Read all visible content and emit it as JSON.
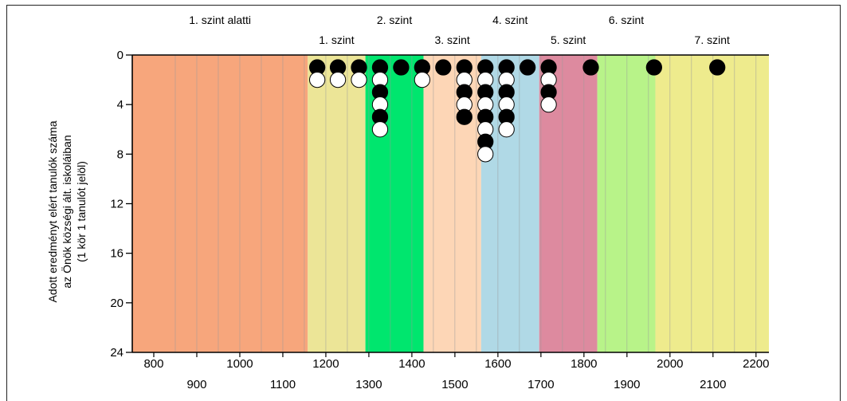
{
  "chart_data": {
    "type": "scatter",
    "title": "",
    "ylabel_lines": [
      "Adott eredményt elért tanulók száma",
      "az Önök községi ált. iskoláiban",
      "(1 kör 1 tanulót jelöl)"
    ],
    "xlabel": "",
    "xlim": [
      750,
      2230
    ],
    "ylim": [
      24,
      0
    ],
    "y_ticks": [
      0,
      4,
      8,
      12,
      16,
      20,
      24
    ],
    "x_ticks_upper": [
      800,
      1000,
      1200,
      1400,
      1600,
      1800,
      2000,
      2200
    ],
    "x_ticks_lower": [
      900,
      1100,
      1300,
      1500,
      1700,
      1900,
      2100
    ],
    "levels": [
      {
        "label": "1. szint alatti",
        "from": 750,
        "to": 1158,
        "color": "#f7a67c",
        "label_row": "top"
      },
      {
        "label": "1. szint",
        "from": 1158,
        "to": 1292,
        "color": "#ece597",
        "label_row": "bottom"
      },
      {
        "label": "2. szint",
        "from": 1292,
        "to": 1427,
        "color": "#00e66e",
        "label_row": "top"
      },
      {
        "label": "3. szint",
        "from": 1427,
        "to": 1561,
        "color": "#fdd6b6",
        "label_row": "bottom"
      },
      {
        "label": "4. szint",
        "from": 1561,
        "to": 1696,
        "color": "#b0d9e6",
        "label_row": "top"
      },
      {
        "label": "5. szint",
        "from": 1696,
        "to": 1831,
        "color": "#dd8a9f",
        "label_row": "bottom"
      },
      {
        "label": "6. szint",
        "from": 1831,
        "to": 1966,
        "color": "#b8f389",
        "label_row": "top"
      },
      {
        "label": "7. szint",
        "from": 1966,
        "to": 2230,
        "color": "#eeeb8d",
        "label_row": "bottom"
      }
    ],
    "grid_x": [
      850,
      900,
      950,
      1000,
      1050,
      1100,
      1150,
      1200,
      1250,
      1300,
      1350,
      1400,
      1450,
      1500,
      1550,
      1600,
      1650,
      1700,
      1750,
      1800,
      1850,
      1900,
      1950,
      2000,
      2050,
      2100,
      2150,
      2200
    ],
    "columns": [
      {
        "x": 1180,
        "count": 2
      },
      {
        "x": 1228,
        "count": 2
      },
      {
        "x": 1277,
        "count": 2
      },
      {
        "x": 1326,
        "count": 6
      },
      {
        "x": 1375,
        "count": 1
      },
      {
        "x": 1424,
        "count": 2
      },
      {
        "x": 1473,
        "count": 1
      },
      {
        "x": 1522,
        "count": 5
      },
      {
        "x": 1571,
        "count": 8
      },
      {
        "x": 1620,
        "count": 6
      },
      {
        "x": 1669,
        "count": 1
      },
      {
        "x": 1718,
        "count": 4
      },
      {
        "x": 1816,
        "count": 1
      },
      {
        "x": 1963,
        "count": 1
      },
      {
        "x": 2110,
        "count": 1
      }
    ],
    "marker_colors": {
      "filled": "#000000",
      "hollow": "#ffffff"
    },
    "grid": true,
    "legend": "none"
  }
}
